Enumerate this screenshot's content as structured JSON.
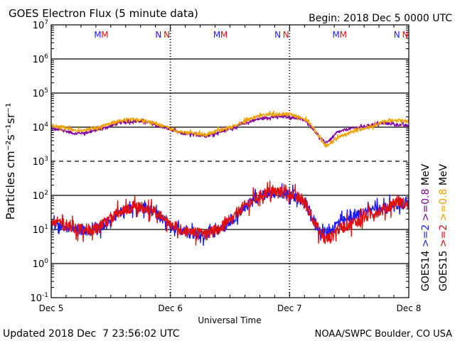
{
  "chart_data": {
    "type": "line",
    "title": "GOES Electron Flux (5 minute data)",
    "begin_label": "Begin: 2018 Dec 5 0000 UTC",
    "xlabel": "Universal Time",
    "ylabel": "Particles cm⁻²s⁻¹sr⁻¹",
    "y_scale": "log",
    "ylim": [
      0.1,
      10000000
    ],
    "y_ticks": [
      {
        "value": 0.1,
        "base": "10",
        "exp": "-1"
      },
      {
        "value": 1,
        "base": "10",
        "exp": "0"
      },
      {
        "value": 10,
        "base": "10",
        "exp": "1"
      },
      {
        "value": 100,
        "base": "10",
        "exp": "2"
      },
      {
        "value": 1000,
        "base": "10",
        "exp": "3"
      },
      {
        "value": 10000,
        "base": "10",
        "exp": "4"
      },
      {
        "value": 100000,
        "base": "10",
        "exp": "5"
      },
      {
        "value": 1000000,
        "base": "10",
        "exp": "6"
      },
      {
        "value": 10000000,
        "base": "10",
        "exp": "7"
      }
    ],
    "x_ticks": [
      "Dec 5",
      "Dec 6",
      "Dec 7",
      "Dec 8"
    ],
    "xlim_days": [
      0,
      3
    ],
    "threshold_dashed": 1000,
    "markers": [
      {
        "label": "M",
        "day": 0.39,
        "color": "#1a1aff"
      },
      {
        "label": "M",
        "day": 0.45,
        "color": "#e01010"
      },
      {
        "label": "N",
        "day": 0.9,
        "color": "#1a1aff"
      },
      {
        "label": "N",
        "day": 0.97,
        "color": "#e01010"
      },
      {
        "label": "M",
        "day": 1.39,
        "color": "#1a1aff"
      },
      {
        "label": "M",
        "day": 1.45,
        "color": "#e01010"
      },
      {
        "label": "N",
        "day": 1.9,
        "color": "#1a1aff"
      },
      {
        "label": "N",
        "day": 1.97,
        "color": "#e01010"
      },
      {
        "label": "M",
        "day": 2.39,
        "color": "#1a1aff"
      },
      {
        "label": "M",
        "day": 2.45,
        "color": "#e01010"
      },
      {
        "label": "N",
        "day": 2.9,
        "color": "#1a1aff"
      },
      {
        "label": "N",
        "day": 2.97,
        "color": "#e01010"
      }
    ],
    "legend": [
      {
        "text": "GOES14",
        "color": "#000000"
      },
      {
        "text": ">=2",
        "color": "#1a1aff"
      },
      {
        "text": ">=0.8",
        "color": "#8000a0"
      },
      {
        "text": "MeV",
        "color": "#000000"
      },
      {
        "text": "GOES15",
        "color": "#000000"
      },
      {
        "text": ">=2",
        "color": "#e01010"
      },
      {
        "text": ">=0.8",
        "color": "#f0a000"
      },
      {
        "text": "MeV",
        "color": "#000000"
      }
    ],
    "series": [
      {
        "name": "GOES14 >=0.8 MeV",
        "color": "#8000a0",
        "noise": 0.04,
        "x": [
          0,
          0.1,
          0.2,
          0.3,
          0.4,
          0.5,
          0.6,
          0.7,
          0.8,
          0.9,
          1.0,
          1.1,
          1.2,
          1.3,
          1.4,
          1.5,
          1.6,
          1.7,
          1.8,
          1.9,
          2.0,
          2.1,
          2.15,
          2.2,
          2.25,
          2.3,
          2.35,
          2.4,
          2.5,
          2.6,
          2.7,
          2.8,
          2.9,
          3.0
        ],
        "values": [
          9000,
          8000,
          6500,
          7000,
          8500,
          11000,
          14000,
          15000,
          14000,
          11000,
          8500,
          6500,
          6000,
          5500,
          7000,
          9000,
          12000,
          16000,
          19000,
          20000,
          20000,
          17000,
          14000,
          9000,
          5000,
          3500,
          4500,
          7000,
          9000,
          10000,
          12000,
          13000,
          12000,
          11000
        ]
      },
      {
        "name": "GOES15 >=0.8 MeV",
        "color": "#f0a000",
        "noise": 0.05,
        "x": [
          0,
          0.1,
          0.2,
          0.3,
          0.4,
          0.5,
          0.6,
          0.7,
          0.8,
          0.9,
          1.0,
          1.1,
          1.2,
          1.3,
          1.4,
          1.5,
          1.6,
          1.7,
          1.8,
          1.9,
          2.0,
          2.1,
          2.15,
          2.2,
          2.25,
          2.3,
          2.35,
          2.4,
          2.5,
          2.6,
          2.7,
          2.8,
          2.9,
          3.0
        ],
        "values": [
          11000,
          10000,
          8000,
          8500,
          10000,
          13000,
          16000,
          17000,
          15000,
          12000,
          9000,
          7000,
          6500,
          6000,
          8000,
          10000,
          14000,
          19000,
          23000,
          24000,
          24000,
          19000,
          15000,
          10000,
          5000,
          2800,
          3500,
          5000,
          7000,
          9000,
          11000,
          15000,
          16000,
          15000
        ]
      },
      {
        "name": "GOES14 >=2 MeV",
        "color": "#1a1aff",
        "noise": 0.15,
        "x": [
          0,
          0.1,
          0.2,
          0.3,
          0.4,
          0.5,
          0.6,
          0.7,
          0.8,
          0.9,
          1.0,
          1.1,
          1.2,
          1.3,
          1.4,
          1.5,
          1.6,
          1.7,
          1.8,
          1.9,
          2.0,
          2.1,
          2.15,
          2.2,
          2.25,
          2.3,
          2.35,
          2.4,
          2.5,
          2.6,
          2.7,
          2.8,
          2.9,
          3.0
        ],
        "values": [
          14,
          12,
          10,
          9,
          10,
          20,
          35,
          45,
          40,
          25,
          12,
          9,
          7,
          7,
          9,
          15,
          40,
          70,
          110,
          115,
          110,
          70,
          45,
          20,
          10,
          8,
          10,
          15,
          20,
          30,
          40,
          45,
          55,
          60
        ]
      },
      {
        "name": "GOES15 >=2 MeV",
        "color": "#e01010",
        "noise": 0.17,
        "x": [
          0,
          0.1,
          0.2,
          0.3,
          0.4,
          0.5,
          0.6,
          0.7,
          0.8,
          0.9,
          1.0,
          1.1,
          1.2,
          1.3,
          1.4,
          1.5,
          1.6,
          1.7,
          1.8,
          1.9,
          2.0,
          2.1,
          2.15,
          2.2,
          2.25,
          2.3,
          2.35,
          2.4,
          2.5,
          2.6,
          2.7,
          2.8,
          2.9,
          3.0
        ],
        "values": [
          18,
          14,
          11,
          10,
          11,
          22,
          38,
          48,
          42,
          28,
          14,
          10,
          8,
          7,
          10,
          17,
          42,
          75,
          120,
          125,
          118,
          75,
          45,
          20,
          8,
          5,
          6,
          10,
          14,
          20,
          30,
          40,
          70,
          50
        ]
      }
    ]
  },
  "footer": {
    "updated": "Updated 2018 Dec  7 23:56:02 UTC",
    "credit": "NOAA/SWPC Boulder, CO USA"
  }
}
